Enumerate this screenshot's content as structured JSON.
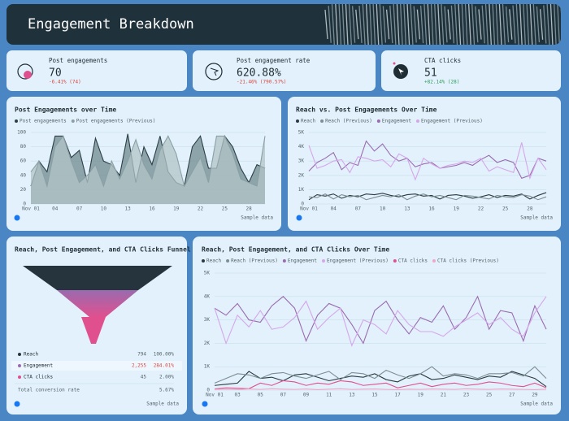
{
  "header": {
    "title": "Engagement Breakdown"
  },
  "kpis": [
    {
      "label": "Post engagements",
      "value": "70",
      "change": "-6.41% (74)",
      "trend": "down"
    },
    {
      "label": "Post engagement rate",
      "value": "620.88%",
      "change": "-21.46% (790.57%)",
      "trend": "down"
    },
    {
      "label": "CTA clicks",
      "value": "51",
      "change": "+82.14% (28)",
      "trend": "up"
    }
  ],
  "chart_data": [
    {
      "type": "area",
      "title": "Post Engagements over Time",
      "source": "Sample data",
      "categories": [
        "Nov 01",
        null,
        null,
        "04",
        null,
        null,
        "07",
        null,
        null,
        "10",
        null,
        null,
        "13",
        null,
        null,
        "16",
        null,
        null,
        "19",
        null,
        null,
        "22",
        null,
        null,
        "25",
        null,
        null,
        "28",
        null,
        null
      ],
      "ylim": [
        0,
        100
      ],
      "yticks": [
        0,
        20,
        40,
        60,
        80,
        100
      ],
      "grid": true,
      "series": [
        {
          "name": "Post engagements",
          "color": "#2c3e46",
          "fill": "#6f8a8f",
          "values": [
            25,
            60,
            45,
            95,
            95,
            65,
            75,
            30,
            92,
            60,
            55,
            40,
            98,
            30,
            80,
            55,
            95,
            45,
            30,
            25,
            80,
            95,
            50,
            50,
            95,
            80,
            50,
            30,
            55,
            50
          ]
        },
        {
          "name": "Post engagements (Previous)",
          "color": "#8aa0a4",
          "fill": "#b3c4c7",
          "values": [
            45,
            60,
            25,
            80,
            95,
            60,
            30,
            40,
            55,
            25,
            60,
            35,
            60,
            90,
            55,
            35,
            75,
            95,
            70,
            25,
            45,
            65,
            30,
            95,
            95,
            70,
            35,
            30,
            25,
            95
          ]
        }
      ]
    },
    {
      "type": "line",
      "title": "Reach vs. Post Engagements Over Time",
      "source": "Sample data",
      "categories": [
        "Nov 01",
        null,
        null,
        "04",
        null,
        null,
        "07",
        null,
        null,
        "10",
        null,
        null,
        "13",
        null,
        null,
        "16",
        null,
        null,
        "19",
        null,
        null,
        "22",
        null,
        null,
        "25",
        null,
        null,
        "28",
        null,
        null
      ],
      "ylim": [
        0,
        5000
      ],
      "yticks": [
        0,
        {
          "value": 1000,
          "label": "1K"
        },
        {
          "value": 2000,
          "label": "2K"
        },
        {
          "value": 3000,
          "label": "3K"
        },
        {
          "value": 4000,
          "label": "4K"
        },
        {
          "value": 5000,
          "label": "5K"
        }
      ],
      "grid": true,
      "series": [
        {
          "name": "Reach",
          "color": "#2a3a42",
          "values": [
            300,
            650,
            550,
            700,
            400,
            600,
            500,
            700,
            650,
            750,
            600,
            500,
            650,
            700,
            550,
            600,
            350,
            600,
            650,
            550,
            400,
            500,
            650,
            450,
            600,
            550,
            700,
            350,
            600,
            800
          ]
        },
        {
          "name": "Reach (Previous)",
          "color": "#7c8f94",
          "values": [
            500,
            450,
            700,
            350,
            650,
            500,
            600,
            300,
            450,
            600,
            500,
            650,
            300,
            550,
            700,
            500,
            600,
            450,
            300,
            600,
            550,
            450,
            350,
            600,
            500,
            450,
            650,
            550,
            300,
            500
          ]
        },
        {
          "name": "Engagement",
          "color": "#9a6bb0",
          "values": [
            2300,
            2900,
            3200,
            3600,
            2400,
            2900,
            2700,
            4400,
            3700,
            4200,
            3400,
            3000,
            3200,
            2600,
            2800,
            2900,
            2500,
            2600,
            2700,
            2900,
            2700,
            3100,
            3400,
            2900,
            3100,
            2900,
            1800,
            2000,
            3200,
            3000
          ]
        },
        {
          "name": "Engagement (Previous)",
          "color": "#d6a6ea",
          "values": [
            4100,
            2500,
            2700,
            3000,
            3100,
            2200,
            3300,
            3200,
            3000,
            3100,
            2600,
            3500,
            3200,
            1700,
            3200,
            2800,
            2500,
            2700,
            2800,
            3000,
            2900,
            3200,
            2300,
            2600,
            2400,
            2200,
            4300,
            1800,
            3200,
            2400
          ]
        }
      ]
    },
    {
      "type": "funnel",
      "title": "Reach, Post Engagement, and CTA Clicks Funnel",
      "source": "Sample data",
      "categories": [
        "Reach",
        "Engagement",
        "CTA clicks"
      ],
      "values": [
        794,
        2255,
        45
      ],
      "value_labels": [
        "794",
        "2,255",
        "45"
      ],
      "percents": [
        100,
        284.01,
        2
      ],
      "percent_labels": [
        "100.00%",
        "284.01%",
        "2.00%"
      ],
      "colors": [
        "#26353d",
        "#9a6bb0",
        "#e0508f"
      ],
      "total_label": "Total conversion rate",
      "total_value": "5.67%"
    },
    {
      "type": "line",
      "title": "Reach, Post Engagement, and CTA Clicks Over Time",
      "source": "Sample data",
      "categories": [
        "Nov 01",
        null,
        "03",
        null,
        "05",
        null,
        "07",
        null,
        "09",
        null,
        "11",
        null,
        "13",
        null,
        "15",
        null,
        "17",
        null,
        "19",
        null,
        "21",
        null,
        "23",
        null,
        "25",
        null,
        "27",
        null,
        "29",
        null
      ],
      "ylim": [
        0,
        5000
      ],
      "yticks": [
        0,
        {
          "value": 1000,
          "label": "1K"
        },
        {
          "value": 2000,
          "label": "2K"
        },
        {
          "value": 3000,
          "label": "3K"
        },
        {
          "value": 4000,
          "label": "4K"
        },
        {
          "value": 5000,
          "label": "5K"
        }
      ],
      "grid": true,
      "series": [
        {
          "name": "Reach",
          "color": "#2a3a42",
          "values": [
            200,
            250,
            300,
            800,
            500,
            550,
            400,
            650,
            700,
            550,
            400,
            500,
            600,
            550,
            700,
            450,
            350,
            600,
            700,
            450,
            500,
            650,
            550,
            450,
            600,
            550,
            800,
            650,
            500,
            150
          ]
        },
        {
          "name": "Reach (Previous)",
          "color": "#7c8f94",
          "values": [
            300,
            500,
            700,
            650,
            500,
            700,
            750,
            600,
            500,
            650,
            800,
            450,
            750,
            700,
            500,
            850,
            650,
            500,
            700,
            1000,
            600,
            700,
            650,
            500,
            700,
            700,
            750,
            600,
            1000,
            500
          ]
        },
        {
          "name": "Engagement",
          "color": "#9a6bb0",
          "values": [
            3500,
            3200,
            3700,
            3000,
            2900,
            3600,
            4000,
            3500,
            2100,
            3200,
            3700,
            3500,
            2800,
            2000,
            3400,
            3800,
            3000,
            2400,
            3100,
            2900,
            3600,
            2600,
            3100,
            4000,
            2600,
            3400,
            3300,
            2100,
            3600,
            2600
          ]
        },
        {
          "name": "Engagement (Previous)",
          "color": "#d6a6ea",
          "values": [
            3500,
            2000,
            3200,
            2700,
            3400,
            2600,
            2700,
            3100,
            3800,
            2600,
            3100,
            3500,
            1900,
            3000,
            2800,
            2400,
            3400,
            2800,
            2500,
            2500,
            2300,
            2700,
            3000,
            3300,
            2800,
            3100,
            2600,
            2300,
            3300,
            4000
          ]
        },
        {
          "name": "CTA clicks",
          "color": "#e0508f",
          "values": [
            50,
            100,
            80,
            60,
            300,
            200,
            400,
            350,
            200,
            300,
            250,
            400,
            350,
            200,
            250,
            300,
            100,
            200,
            300,
            150,
            250,
            300,
            200,
            250,
            350,
            300,
            200,
            150,
            300,
            100
          ]
        },
        {
          "name": "CTA clicks (Previous)",
          "color": "#f0a6c8",
          "values": [
            30,
            40,
            20,
            50,
            30,
            60,
            40,
            30,
            50,
            20,
            40,
            60,
            30,
            40,
            50,
            30,
            20,
            40,
            30,
            50,
            40,
            30,
            60,
            40,
            30,
            50,
            40,
            30,
            20,
            40
          ]
        }
      ]
    }
  ]
}
